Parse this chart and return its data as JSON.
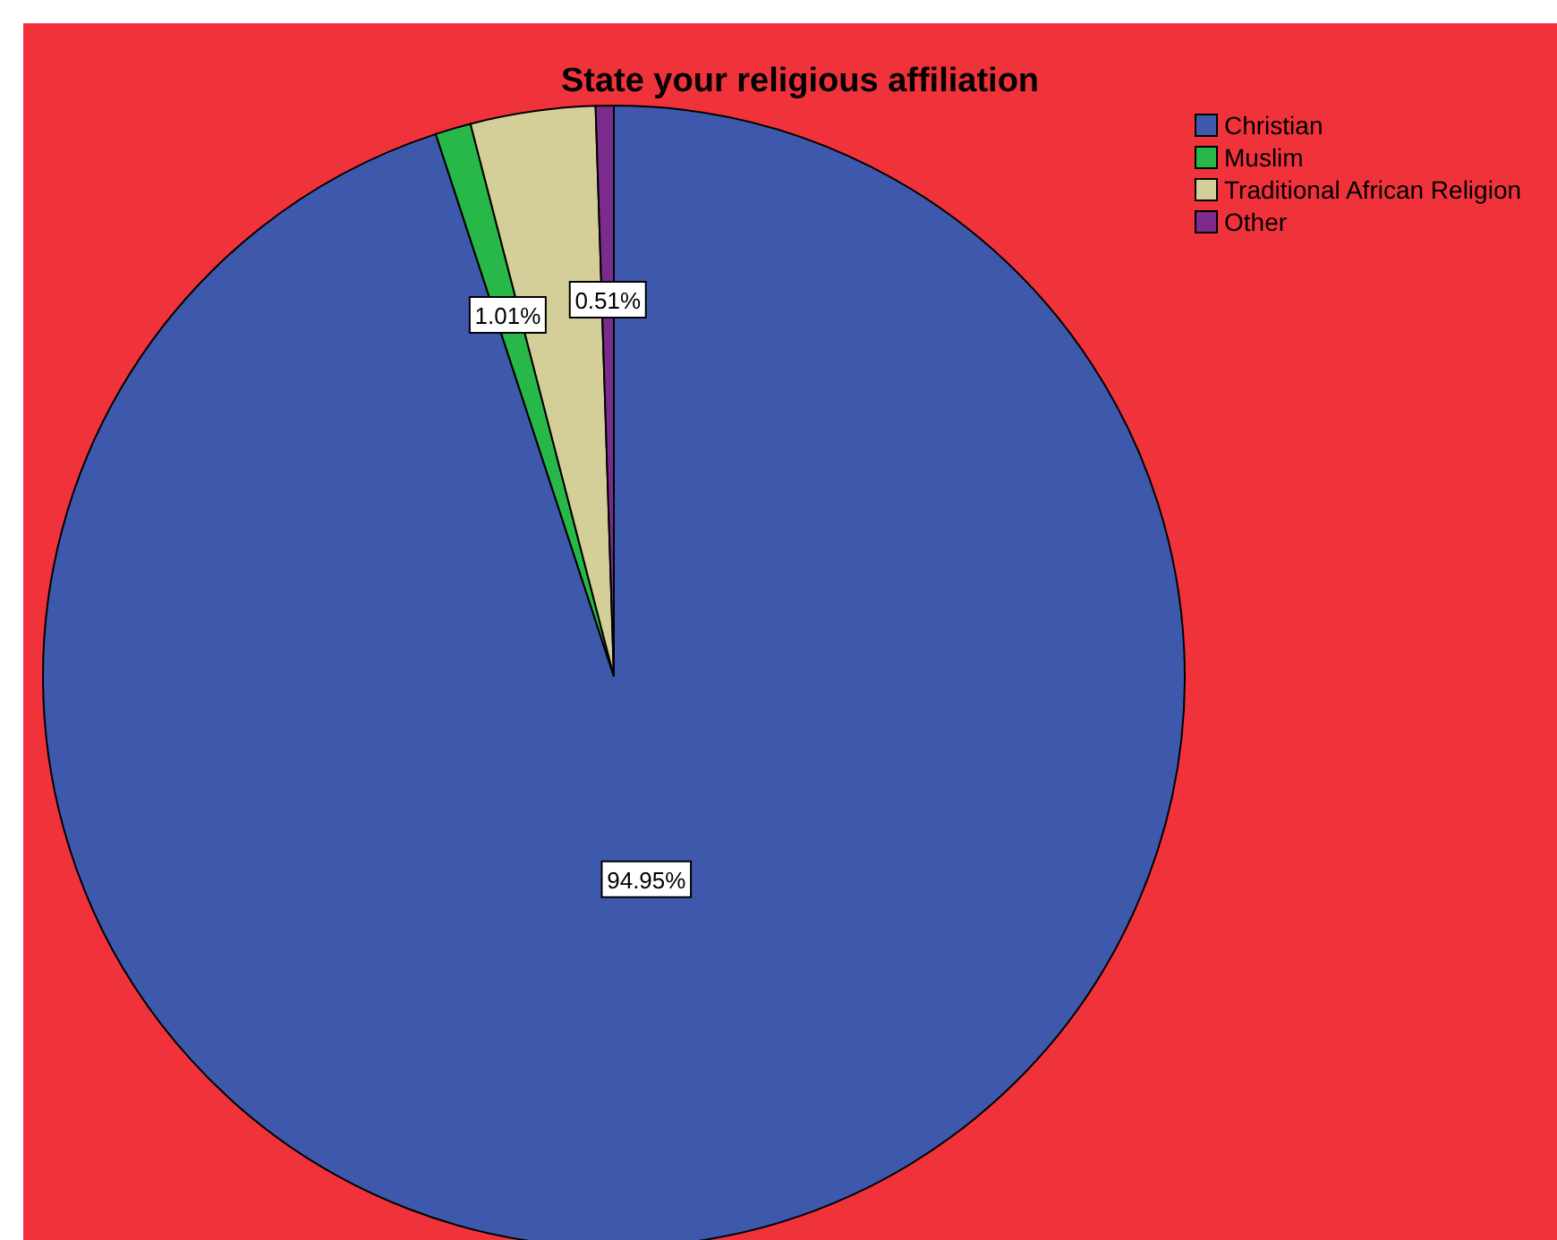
{
  "chart_data": {
    "type": "pie",
    "title": "State your religious affiliation",
    "categories": [
      "Christian",
      "Muslim",
      "Traditional African Religion",
      "Other"
    ],
    "values": [
      94.95,
      1.01,
      3.53,
      0.51
    ],
    "value_labels": [
      "94.95%",
      "1.01%",
      null,
      "0.51%"
    ],
    "colors": [
      "#3e58ac",
      "#28b84a",
      "#d4cf99",
      "#7b2b8c"
    ],
    "legend": "top right"
  }
}
